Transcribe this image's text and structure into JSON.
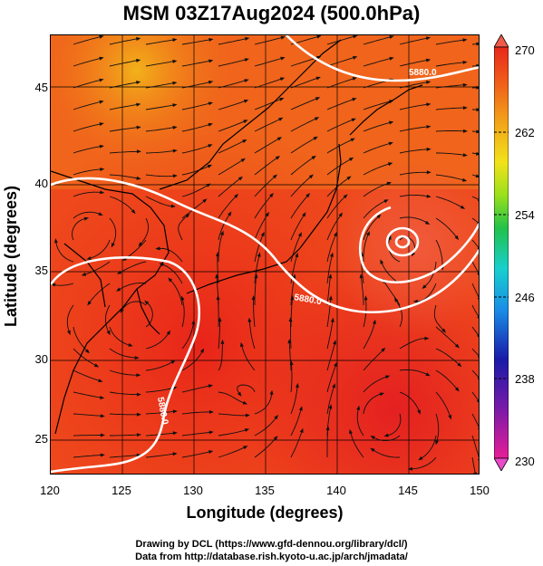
{
  "title": "MSM 03Z17Aug2024 (500.0hPa)",
  "xlabel": "Longitude (degrees)",
  "ylabel": "Latitude  (degrees)",
  "x_ticks": [
    "120",
    "125",
    "130",
    "135",
    "140",
    "145",
    "150"
  ],
  "y_ticks": [
    "45",
    "40",
    "35",
    "30",
    "25"
  ],
  "colorbar": {
    "labels": [
      "270",
      "262",
      "254",
      "246",
      "238",
      "230"
    ],
    "min": 230,
    "max": 270,
    "colors": [
      "#e61e96",
      "#1a1aa8",
      "#1a8ce6",
      "#18cfcf",
      "#22c24a",
      "#9ae01c",
      "#f2e21a",
      "#f2a21a",
      "#f0601a",
      "#e8281a"
    ]
  },
  "contour_labels": [
    "5880.0",
    "5880.0",
    "5880.0"
  ],
  "credits": {
    "line1": "Drawing by DCL (https://www.gfd-dennou.org/library/dcl/)",
    "line2": "Data from http://database.rish.kyoto-u.ac.jp/arch/jmadata/"
  },
  "map": {
    "lon_range": [
      120,
      150
    ],
    "lat_range": [
      22.5,
      48
    ],
    "field": "temperature",
    "overlay": [
      "streamlines",
      "5880 m geopotential height contour",
      "coastlines",
      "1-degree grid"
    ]
  }
}
